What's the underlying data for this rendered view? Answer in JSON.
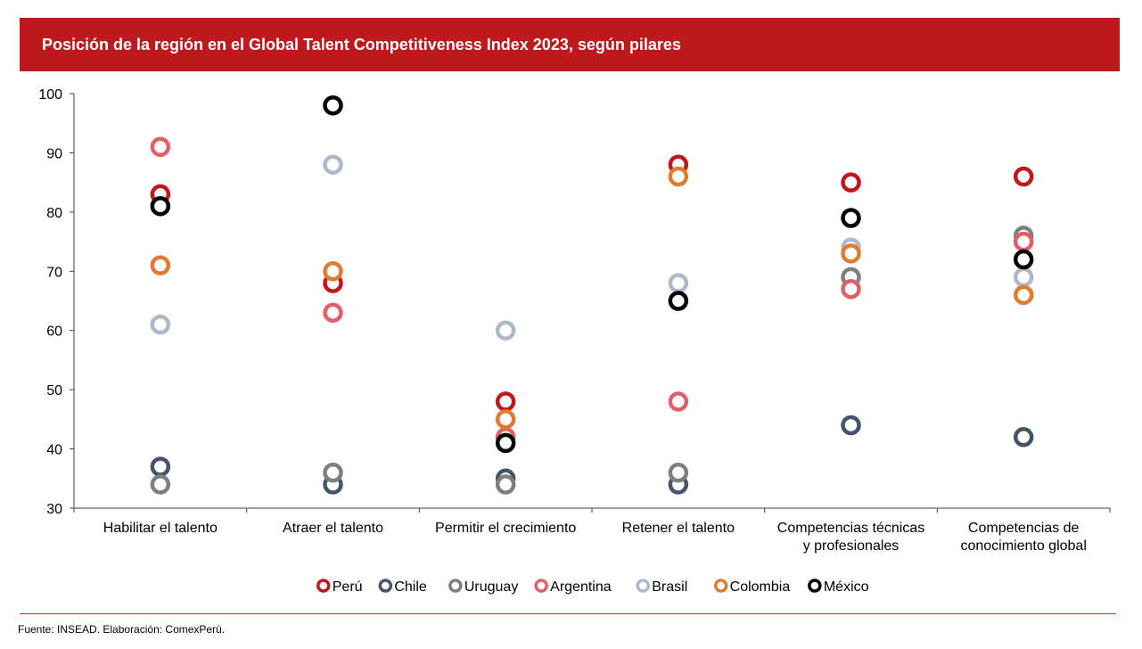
{
  "title": "Posición de la región en el Global Talent Competitiveness Index 2023, según pilares",
  "source": "Fuente: INSEAD. Elaboración: ComexPerú.",
  "chart_data": {
    "type": "scatter",
    "title": "Posición de la región en el Global Talent Competitiveness Index 2023, según pilares",
    "categories": [
      [
        "Habilitar el talento"
      ],
      [
        "Atraer el talento"
      ],
      [
        "Permitir el crecimiento"
      ],
      [
        "Retener el talento"
      ],
      [
        "Competencias técnicas",
        "y profesionales"
      ],
      [
        "Competencias de",
        "conocimiento global"
      ]
    ],
    "ylim": [
      30,
      100
    ],
    "yticks": [
      30,
      40,
      50,
      60,
      70,
      80,
      90,
      100
    ],
    "legend_position": "bottom",
    "series": [
      {
        "name": "Perú",
        "color": "#c0161c",
        "values": [
          83,
          68,
          48,
          88,
          85,
          86
        ]
      },
      {
        "name": "Chile",
        "color": "#44546a",
        "values": [
          37,
          34,
          35,
          34,
          44,
          42
        ]
      },
      {
        "name": "Uruguay",
        "color": "#7f7f7f",
        "values": [
          34,
          36,
          34,
          36,
          69,
          76
        ]
      },
      {
        "name": "Argentina",
        "color": "#e06069",
        "values": [
          91,
          63,
          42,
          48,
          67,
          75
        ]
      },
      {
        "name": "Brasil",
        "color": "#adb9ca",
        "values": [
          61,
          88,
          60,
          68,
          74,
          69
        ]
      },
      {
        "name": "Colombia",
        "color": "#e07b32",
        "values": [
          71,
          70,
          45,
          86,
          73,
          66
        ]
      },
      {
        "name": "México",
        "color": "#000000",
        "values": [
          81,
          98,
          41,
          65,
          79,
          72
        ]
      }
    ]
  }
}
